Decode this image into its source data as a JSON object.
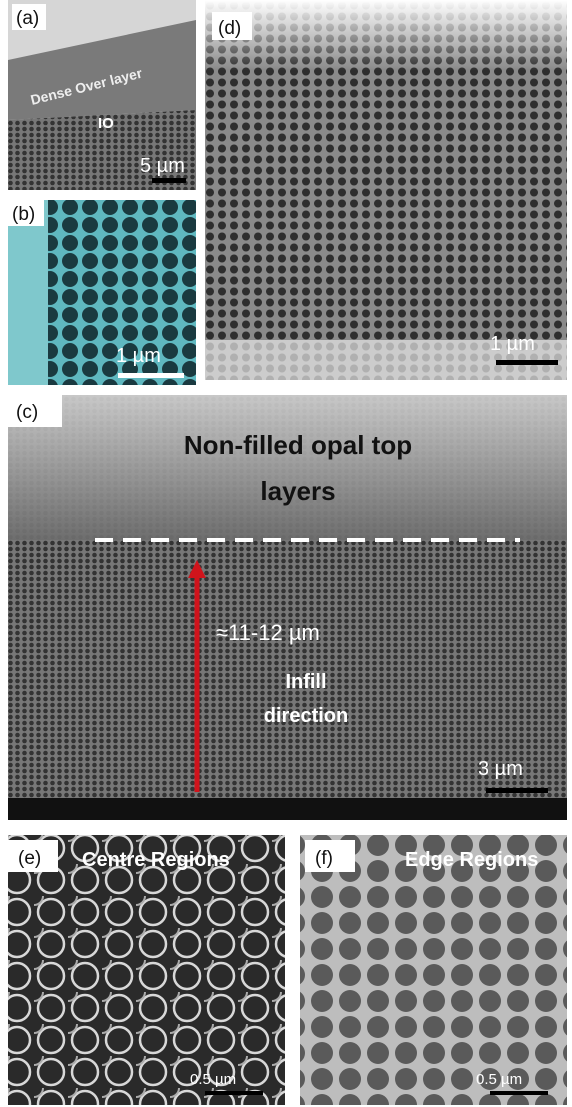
{
  "panels": {
    "a": {
      "label": "(a)",
      "annotations": [
        "Dense Over layer",
        "IO"
      ],
      "scale_bar": "5 µm"
    },
    "b": {
      "label": "(b)",
      "scale_bar": "1 µm"
    },
    "d": {
      "label": "(d)",
      "scale_bar": "1 µm"
    },
    "c": {
      "label": "(c)",
      "title_lines": [
        "Non-filled opal top",
        "layers"
      ],
      "thickness": "≈11-12 µm",
      "direction_lines": [
        "Infill",
        "direction"
      ],
      "scale_bar": "3 µm"
    },
    "e": {
      "label": "(e)",
      "region": "Centre Regions",
      "scale_bar": "0.5 µm"
    },
    "f": {
      "label": "(f)",
      "region": "Edge Regions",
      "scale_bar": "0.5 µm"
    }
  }
}
